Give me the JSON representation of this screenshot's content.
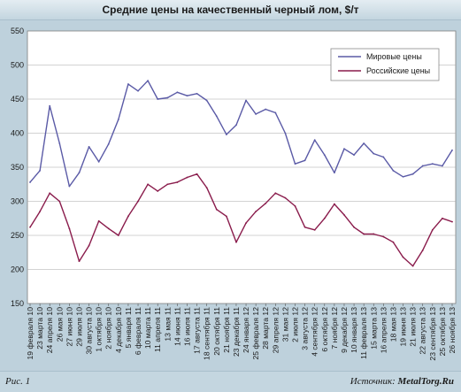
{
  "title": "Средние цены на качественный черный лом, $/т",
  "footer": {
    "figure_label": "Рис. 1",
    "source_label": "Источник:",
    "source_name": "MetalTorg.Ru"
  },
  "colors": {
    "world": "#5a5aa6",
    "russian": "#8a1c4c",
    "plot_background": "#ffffff",
    "frame_background": "#bed1dc",
    "gridline": "#a8a8a8"
  },
  "chart_data": {
    "type": "line",
    "title": "Средние цены на качественный черный лом, $/т",
    "xlabel": "",
    "ylabel": "",
    "ylim": [
      150,
      550
    ],
    "yticks": [
      150,
      200,
      250,
      300,
      350,
      400,
      450,
      500,
      550
    ],
    "grid": "horizontal",
    "legend_position": "top-right",
    "x": [
      "19 февраля 10",
      "23 марта 10",
      "24 апреля 10",
      "26 мая 10",
      "27 июня 10",
      "29 июля 10",
      "30 августа 10",
      "1 октября 10",
      "2 ноября 10",
      "4 декабря 10",
      "5 января 11",
      "6 февраля 11",
      "10 марта 11",
      "11 апреля 11",
      "13 мая 11",
      "14 июня 11",
      "16 июля 11",
      "17 августа 11",
      "18 сентября 11",
      "20 октября 11",
      "21 ноября 11",
      "23 декабря 11",
      "24 января 12",
      "25 февраля 12",
      "28 марта 12",
      "29 апреля 12",
      "31 мая 12",
      "2 июля 12",
      "3 августа 12",
      "4 сентября 12",
      "6 октября 12",
      "7 ноября 12",
      "9 декабря 12",
      "10 января 13",
      "11 февраля 13",
      "15 марта 13",
      "16 апреля 13",
      "18 мая 13",
      "19 июня 13",
      "21 июля 13",
      "22 августа 13",
      "23 сентября 13",
      "25 октября 13",
      "26 ноября 13"
    ],
    "series": [
      {
        "name": "Мировые цены",
        "values": [
          328,
          345,
          440,
          385,
          322,
          342,
          380,
          358,
          384,
          420,
          472,
          462,
          477,
          450,
          452,
          460,
          455,
          458,
          448,
          425,
          398,
          412,
          448,
          428,
          435,
          430,
          400,
          355,
          360,
          390,
          368,
          342,
          377,
          368,
          385,
          370,
          365,
          345,
          336,
          340,
          352,
          355,
          352,
          375
        ]
      },
      {
        "name": "Российские цены",
        "values": [
          262,
          285,
          312,
          300,
          260,
          212,
          235,
          271,
          260,
          250,
          278,
          300,
          325,
          315,
          325,
          328,
          335,
          340,
          320,
          288,
          278,
          240,
          268,
          285,
          297,
          312,
          305,
          293,
          262,
          258,
          275,
          296,
          280,
          262,
          252,
          252,
          248,
          240,
          218,
          205,
          228,
          258,
          275,
          270
        ]
      }
    ]
  }
}
